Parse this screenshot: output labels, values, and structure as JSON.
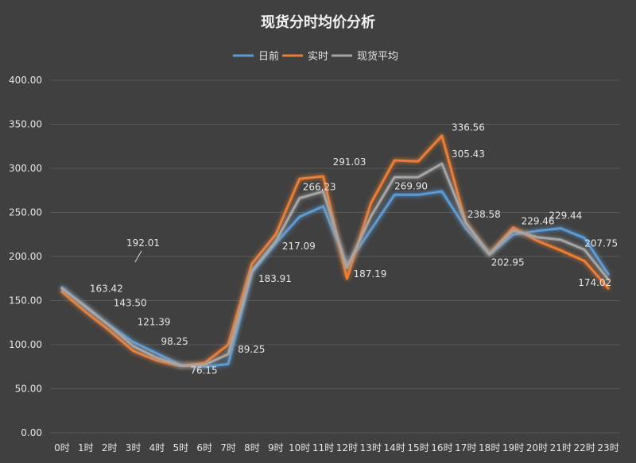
{
  "chart_data": {
    "type": "line",
    "title": "现货分时均价分析",
    "categories": [
      "0时",
      "1时",
      "2时",
      "3时",
      "4时",
      "5时",
      "6时",
      "7时",
      "8时",
      "9时",
      "10时",
      "11时",
      "12时",
      "13时",
      "14时",
      "15时",
      "16时",
      "17时",
      "18时",
      "19时",
      "20时",
      "21时",
      "22时",
      "23时"
    ],
    "ylim": [
      0,
      400
    ],
    "yticks": [
      "0.00",
      "50.00",
      "100.00",
      "150.00",
      "200.00",
      "250.00",
      "300.00",
      "350.00",
      "400.00"
    ],
    "grid": true,
    "legend_position": "top",
    "series": [
      {
        "name": "日前",
        "color": "#5b9bd5",
        "values": [
          165,
          142,
          122,
          103,
          90,
          77,
          75,
          78,
          182,
          215,
          245,
          257,
          190,
          230,
          270,
          270,
          274,
          232,
          202,
          225,
          229,
          232,
          221,
          180
        ]
      },
      {
        "name": "实时",
        "color": "#ed7d31",
        "values": [
          160,
          137,
          116,
          93,
          82,
          76,
          79,
          100,
          192,
          225,
          288,
          291,
          175,
          260,
          309,
          308,
          337,
          238,
          203,
          233,
          218,
          207,
          195,
          164
        ]
      },
      {
        "name": "现货平均",
        "color": "#a5a5a5",
        "values": [
          163.42,
          143.5,
          121.39,
          98.25,
          85,
          76.15,
          77,
          89.25,
          183.91,
          217.09,
          266.23,
          274,
          187.19,
          245,
          290,
          290,
          305.43,
          238.58,
          202.95,
          229.46,
          222,
          219,
          207.75,
          174.02
        ]
      }
    ],
    "average_line": {
      "value": 192.01,
      "label": "192.01",
      "color": "#ffd700"
    },
    "data_labels": [
      {
        "index": 1,
        "value": "163.42"
      },
      {
        "index": 2,
        "value": "143.50"
      },
      {
        "index": 3,
        "value": "121.39"
      },
      {
        "index": 4,
        "value": "98.25"
      },
      {
        "index": 5,
        "value": "76.15"
      },
      {
        "index": 7,
        "value": "89.25"
      },
      {
        "index": 8,
        "value": "183.91"
      },
      {
        "index": 9,
        "value": "217.09"
      },
      {
        "index": 10,
        "value": "266.23"
      },
      {
        "index": 11,
        "value": "291.03"
      },
      {
        "index": 12,
        "value": "187.19"
      },
      {
        "index": 15,
        "value": "269.90"
      },
      {
        "index": 16,
        "value": "336.56"
      },
      {
        "index": 16,
        "value": "305.43"
      },
      {
        "index": 17,
        "value": "238.58"
      },
      {
        "index": 18,
        "value": "202.95"
      },
      {
        "index": 19,
        "value": "229.46"
      },
      {
        "index": 21,
        "value": "229.44"
      },
      {
        "index": 22,
        "value": "207.75"
      },
      {
        "index": 22,
        "value": "174.02"
      }
    ]
  }
}
